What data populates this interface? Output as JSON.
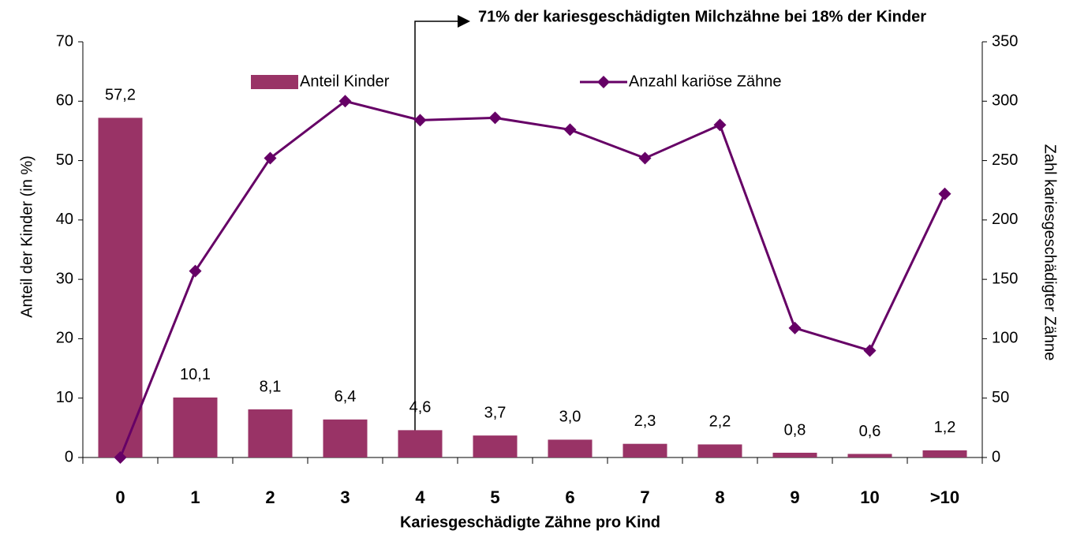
{
  "chart_data": {
    "type": "bar-line",
    "annotation": "71% der kariesgeschädigten Milchzähne bei 18% der Kinder",
    "x_label": "Kariesgeschädigte Zähne pro Kind",
    "y_label": "Anteil der Kinder (in %)",
    "y2_label": "Zahl kariesgeschädigter Zähne",
    "categories": [
      "0",
      "1",
      "2",
      "3",
      "4",
      "5",
      "6",
      "7",
      "8",
      "9",
      "10",
      ">10"
    ],
    "series": [
      {
        "name": "Anteil Kinder",
        "type": "bar",
        "color": "#993366",
        "values": [
          57.2,
          10.1,
          8.1,
          6.4,
          4.6,
          3.7,
          3.0,
          2.3,
          2.2,
          0.8,
          0.6,
          1.2
        ],
        "value_labels": [
          "57,2",
          "10,1",
          "8,1",
          "6,4",
          "4,6",
          "3,7",
          "3,0",
          "2,3",
          "2,2",
          "0,8",
          "0,6",
          "1,2"
        ]
      },
      {
        "name": "Anzahl kariöse Zähne",
        "type": "line",
        "axis": "y2",
        "color": "#660066",
        "values": [
          0,
          157,
          252,
          300,
          284,
          286,
          276,
          252,
          280,
          109,
          90,
          222
        ]
      }
    ],
    "ylim": [
      0,
      70
    ],
    "yticks": [
      0,
      10,
      20,
      30,
      40,
      50,
      60,
      70
    ],
    "y2lim": [
      0,
      350
    ],
    "y2ticks": [
      0,
      50,
      100,
      150,
      200,
      250,
      300,
      350
    ],
    "grid": false
  }
}
